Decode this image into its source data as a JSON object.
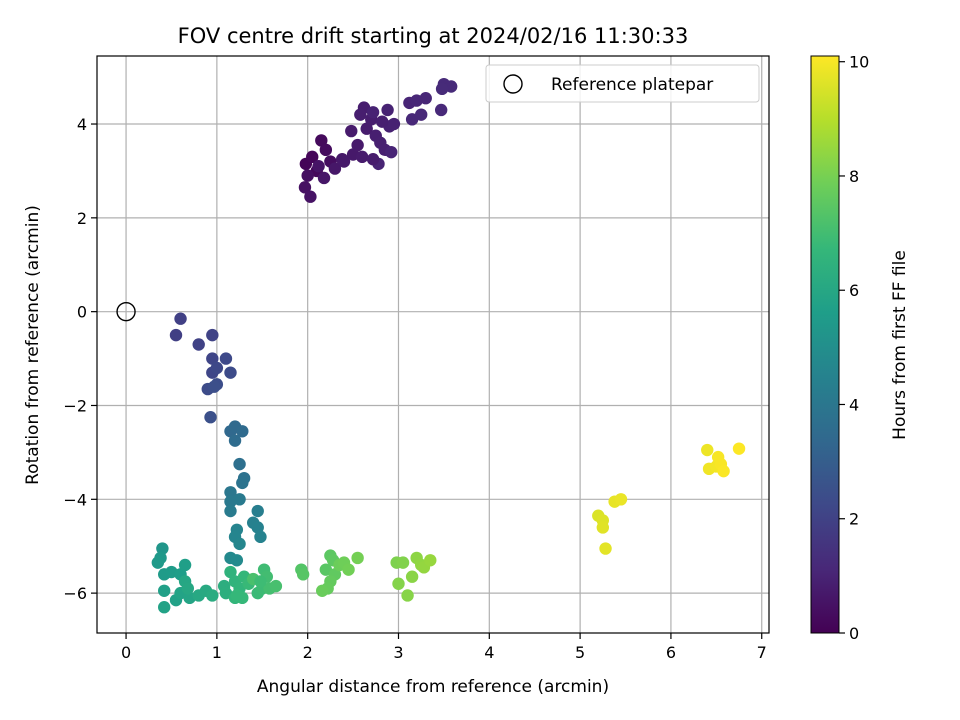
{
  "chart_data": {
    "type": "scatter",
    "title": "FOV centre drift starting at 2024/02/16 11:30:33",
    "xlabel": "Angular distance from reference (arcmin)",
    "ylabel": "Rotation from reference (arcmin)",
    "xlim": [
      -0.32,
      7.08
    ],
    "ylim": [
      -6.85,
      5.45
    ],
    "xticks": [
      0,
      1,
      2,
      3,
      4,
      5,
      6,
      7
    ],
    "yticks": [
      -6,
      -4,
      -2,
      0,
      2,
      4
    ],
    "grid": true,
    "legend": {
      "placement": "upper-right",
      "entries": [
        "Reference platepar"
      ]
    },
    "reference_point": {
      "name": "Reference platepar",
      "x": 0,
      "y": 0
    },
    "colorbar": {
      "label": "Hours from first FF file",
      "range": [
        0,
        10.1
      ],
      "ticks": [
        0,
        2,
        4,
        6,
        8,
        10
      ],
      "colormap": "viridis",
      "stops": [
        "#440154",
        "#482878",
        "#3e4989",
        "#31688e",
        "#26828e",
        "#1f9e89",
        "#35b779",
        "#6ece58",
        "#b5de2b",
        "#fde725"
      ]
    },
    "points": [
      {
        "x": 1.98,
        "y": 3.15,
        "h": 0.1
      },
      {
        "x": 2.05,
        "y": 3.3,
        "h": 0.15
      },
      {
        "x": 2.1,
        "y": 3.0,
        "h": 0.2
      },
      {
        "x": 2.15,
        "y": 3.65,
        "h": 0.25
      },
      {
        "x": 2.2,
        "y": 3.45,
        "h": 0.3
      },
      {
        "x": 2.25,
        "y": 3.2,
        "h": 0.35
      },
      {
        "x": 2.0,
        "y": 2.9,
        "h": 0.4
      },
      {
        "x": 1.97,
        "y": 2.65,
        "h": 0.45
      },
      {
        "x": 2.03,
        "y": 2.45,
        "h": 0.5
      },
      {
        "x": 2.12,
        "y": 3.1,
        "h": 0.55
      },
      {
        "x": 2.18,
        "y": 2.85,
        "h": 0.6
      },
      {
        "x": 2.3,
        "y": 3.05,
        "h": 0.62
      },
      {
        "x": 2.38,
        "y": 3.25,
        "h": 0.65
      },
      {
        "x": 2.5,
        "y": 3.35,
        "h": 0.7
      },
      {
        "x": 2.55,
        "y": 3.55,
        "h": 0.72
      },
      {
        "x": 2.6,
        "y": 3.3,
        "h": 0.74
      },
      {
        "x": 2.48,
        "y": 3.85,
        "h": 0.75
      },
      {
        "x": 2.65,
        "y": 3.9,
        "h": 0.78
      },
      {
        "x": 2.7,
        "y": 4.1,
        "h": 0.8
      },
      {
        "x": 2.62,
        "y": 4.35,
        "h": 0.82
      },
      {
        "x": 2.58,
        "y": 4.2,
        "h": 0.84
      },
      {
        "x": 2.75,
        "y": 3.75,
        "h": 0.86
      },
      {
        "x": 2.8,
        "y": 3.6,
        "h": 0.88
      },
      {
        "x": 2.85,
        "y": 3.45,
        "h": 0.9
      },
      {
        "x": 2.9,
        "y": 3.95,
        "h": 0.92
      },
      {
        "x": 2.95,
        "y": 4.0,
        "h": 0.94
      },
      {
        "x": 2.72,
        "y": 4.25,
        "h": 0.96
      },
      {
        "x": 2.88,
        "y": 4.3,
        "h": 0.98
      },
      {
        "x": 2.78,
        "y": 3.15,
        "h": 1.0
      },
      {
        "x": 2.92,
        "y": 3.4,
        "h": 1.02
      },
      {
        "x": 3.12,
        "y": 4.45,
        "h": 1.05
      },
      {
        "x": 3.2,
        "y": 4.5,
        "h": 1.08
      },
      {
        "x": 3.3,
        "y": 4.55,
        "h": 1.1
      },
      {
        "x": 3.15,
        "y": 4.1,
        "h": 1.12
      },
      {
        "x": 3.25,
        "y": 4.2,
        "h": 1.14
      },
      {
        "x": 3.47,
        "y": 4.3,
        "h": 1.16
      },
      {
        "x": 3.5,
        "y": 4.85,
        "h": 1.18
      },
      {
        "x": 3.58,
        "y": 4.8,
        "h": 1.2
      },
      {
        "x": 3.48,
        "y": 4.75,
        "h": 1.22
      },
      {
        "x": 2.4,
        "y": 3.2,
        "h": 0.68
      },
      {
        "x": 2.72,
        "y": 3.25,
        "h": 0.79
      },
      {
        "x": 2.82,
        "y": 4.05,
        "h": 0.87
      },
      {
        "x": 0.55,
        "y": -0.5,
        "h": 1.9
      },
      {
        "x": 0.6,
        "y": -0.15,
        "h": 1.95
      },
      {
        "x": 0.8,
        "y": -0.7,
        "h": 2.0
      },
      {
        "x": 0.95,
        "y": -0.5,
        "h": 2.05
      },
      {
        "x": 0.95,
        "y": -1.0,
        "h": 2.1
      },
      {
        "x": 0.95,
        "y": -1.3,
        "h": 2.15
      },
      {
        "x": 1.0,
        "y": -1.2,
        "h": 2.2
      },
      {
        "x": 1.1,
        "y": -1.0,
        "h": 2.25
      },
      {
        "x": 1.15,
        "y": -1.3,
        "h": 2.3
      },
      {
        "x": 0.9,
        "y": -1.65,
        "h": 2.35
      },
      {
        "x": 1.0,
        "y": -1.55,
        "h": 2.4
      },
      {
        "x": 0.97,
        "y": -1.6,
        "h": 2.45
      },
      {
        "x": 0.93,
        "y": -2.25,
        "h": 2.5
      },
      {
        "x": 1.15,
        "y": -2.55,
        "h": 3.4
      },
      {
        "x": 1.2,
        "y": -2.45,
        "h": 3.45
      },
      {
        "x": 1.28,
        "y": -2.55,
        "h": 3.5
      },
      {
        "x": 1.2,
        "y": -2.75,
        "h": 3.55
      },
      {
        "x": 1.25,
        "y": -3.25,
        "h": 3.7
      },
      {
        "x": 1.3,
        "y": -3.55,
        "h": 3.8
      },
      {
        "x": 1.28,
        "y": -3.65,
        "h": 3.85
      },
      {
        "x": 1.15,
        "y": -3.85,
        "h": 4.0
      },
      {
        "x": 1.15,
        "y": -4.05,
        "h": 4.1
      },
      {
        "x": 1.25,
        "y": -4.0,
        "h": 4.15
      },
      {
        "x": 1.15,
        "y": -4.25,
        "h": 4.2
      },
      {
        "x": 1.45,
        "y": -4.25,
        "h": 4.3
      },
      {
        "x": 1.4,
        "y": -4.5,
        "h": 4.4
      },
      {
        "x": 1.45,
        "y": -4.6,
        "h": 4.45
      },
      {
        "x": 1.48,
        "y": -4.8,
        "h": 4.5
      },
      {
        "x": 1.22,
        "y": -4.65,
        "h": 4.55
      },
      {
        "x": 1.2,
        "y": -4.8,
        "h": 4.6
      },
      {
        "x": 1.25,
        "y": -4.95,
        "h": 4.65
      },
      {
        "x": 1.15,
        "y": -5.25,
        "h": 4.75
      },
      {
        "x": 1.22,
        "y": -5.3,
        "h": 4.8
      },
      {
        "x": 0.4,
        "y": -5.05,
        "h": 5.3
      },
      {
        "x": 0.38,
        "y": -5.25,
        "h": 5.4
      },
      {
        "x": 0.35,
        "y": -5.35,
        "h": 5.45
      },
      {
        "x": 0.42,
        "y": -5.6,
        "h": 5.5
      },
      {
        "x": 0.5,
        "y": -5.55,
        "h": 5.55
      },
      {
        "x": 0.6,
        "y": -5.6,
        "h": 5.6
      },
      {
        "x": 0.65,
        "y": -5.4,
        "h": 5.65
      },
      {
        "x": 0.42,
        "y": -5.95,
        "h": 5.7
      },
      {
        "x": 0.55,
        "y": -6.15,
        "h": 5.75
      },
      {
        "x": 0.42,
        "y": -6.3,
        "h": 5.8
      },
      {
        "x": 0.6,
        "y": -6.0,
        "h": 5.85
      },
      {
        "x": 0.7,
        "y": -6.1,
        "h": 5.9
      },
      {
        "x": 0.65,
        "y": -5.75,
        "h": 5.95
      },
      {
        "x": 0.68,
        "y": -5.9,
        "h": 6.0
      },
      {
        "x": 0.8,
        "y": -6.05,
        "h": 6.05
      },
      {
        "x": 0.88,
        "y": -5.95,
        "h": 6.1
      },
      {
        "x": 0.95,
        "y": -6.05,
        "h": 6.2
      },
      {
        "x": 1.08,
        "y": -5.85,
        "h": 6.3
      },
      {
        "x": 1.1,
        "y": -6.0,
        "h": 6.35
      },
      {
        "x": 1.15,
        "y": -5.55,
        "h": 6.5
      },
      {
        "x": 1.2,
        "y": -5.75,
        "h": 6.55
      },
      {
        "x": 1.25,
        "y": -5.9,
        "h": 6.6
      },
      {
        "x": 1.2,
        "y": -6.1,
        "h": 6.65
      },
      {
        "x": 1.3,
        "y": -5.65,
        "h": 6.7
      },
      {
        "x": 1.28,
        "y": -6.1,
        "h": 6.75
      },
      {
        "x": 1.35,
        "y": -5.8,
        "h": 6.8
      },
      {
        "x": 1.45,
        "y": -6.0,
        "h": 6.85
      },
      {
        "x": 1.5,
        "y": -5.9,
        "h": 6.9
      },
      {
        "x": 1.52,
        "y": -5.5,
        "h": 6.95
      },
      {
        "x": 1.55,
        "y": -5.65,
        "h": 7.0
      },
      {
        "x": 1.58,
        "y": -5.9,
        "h": 7.05
      },
      {
        "x": 1.65,
        "y": -5.85,
        "h": 7.1
      },
      {
        "x": 1.4,
        "y": -5.7,
        "h": 7.15
      },
      {
        "x": 1.22,
        "y": -6.05,
        "h": 6.72
      },
      {
        "x": 1.48,
        "y": -5.75,
        "h": 6.92
      },
      {
        "x": 1.93,
        "y": -5.5,
        "h": 7.35
      },
      {
        "x": 1.95,
        "y": -5.6,
        "h": 7.4
      },
      {
        "x": 2.2,
        "y": -5.5,
        "h": 7.45
      },
      {
        "x": 2.25,
        "y": -5.2,
        "h": 7.5
      },
      {
        "x": 2.28,
        "y": -5.3,
        "h": 7.55
      },
      {
        "x": 2.3,
        "y": -5.6,
        "h": 7.6
      },
      {
        "x": 2.25,
        "y": -5.75,
        "h": 7.65
      },
      {
        "x": 2.22,
        "y": -5.9,
        "h": 7.7
      },
      {
        "x": 2.16,
        "y": -5.95,
        "h": 7.75
      },
      {
        "x": 2.35,
        "y": -5.4,
        "h": 7.8
      },
      {
        "x": 2.4,
        "y": -5.35,
        "h": 7.85
      },
      {
        "x": 2.45,
        "y": -5.5,
        "h": 7.9
      },
      {
        "x": 2.55,
        "y": -5.25,
        "h": 7.95
      },
      {
        "x": 2.98,
        "y": -5.35,
        "h": 8.1
      },
      {
        "x": 3.05,
        "y": -5.35,
        "h": 8.15
      },
      {
        "x": 3.0,
        "y": -5.8,
        "h": 8.2
      },
      {
        "x": 3.1,
        "y": -6.05,
        "h": 8.25
      },
      {
        "x": 3.15,
        "y": -5.65,
        "h": 8.3
      },
      {
        "x": 3.2,
        "y": -5.25,
        "h": 8.35
      },
      {
        "x": 3.25,
        "y": -5.4,
        "h": 8.4
      },
      {
        "x": 3.28,
        "y": -5.45,
        "h": 8.45
      },
      {
        "x": 3.35,
        "y": -5.3,
        "h": 8.5
      },
      {
        "x": 5.2,
        "y": -4.35,
        "h": 9.55
      },
      {
        "x": 5.25,
        "y": -4.45,
        "h": 9.6
      },
      {
        "x": 5.25,
        "y": -4.6,
        "h": 9.65
      },
      {
        "x": 5.28,
        "y": -5.05,
        "h": 9.7
      },
      {
        "x": 5.38,
        "y": -4.05,
        "h": 9.75
      },
      {
        "x": 5.45,
        "y": -4.0,
        "h": 9.8
      },
      {
        "x": 6.4,
        "y": -2.95,
        "h": 9.85
      },
      {
        "x": 6.42,
        "y": -3.35,
        "h": 9.9
      },
      {
        "x": 6.5,
        "y": -3.3,
        "h": 9.95
      },
      {
        "x": 6.52,
        "y": -3.1,
        "h": 10.0
      },
      {
        "x": 6.55,
        "y": -3.25,
        "h": 10.02
      },
      {
        "x": 6.58,
        "y": -3.4,
        "h": 10.05
      },
      {
        "x": 6.75,
        "y": -2.92,
        "h": 10.08
      }
    ]
  }
}
